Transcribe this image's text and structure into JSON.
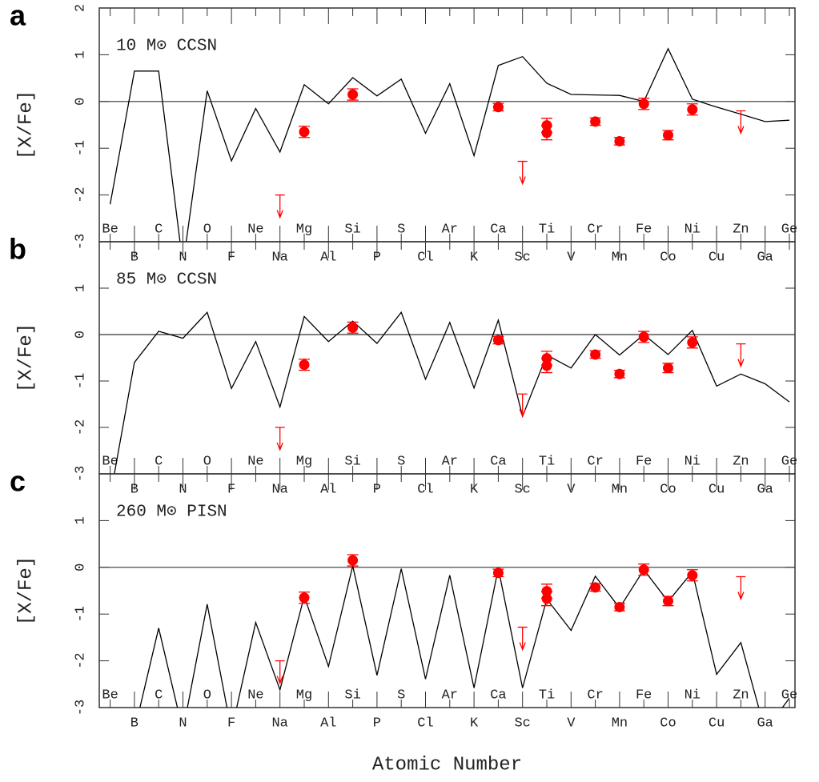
{
  "chart_data": [
    {
      "type": "line",
      "label": "a",
      "title": "10 M⊙ CCSN",
      "ylabel": "[X/Fe]",
      "categories": [
        "Be",
        "B",
        "C",
        "N",
        "O",
        "F",
        "Ne",
        "Na",
        "Mg",
        "Al",
        "Si",
        "P",
        "S",
        "Cl",
        "Ar",
        "K",
        "Ca",
        "Sc",
        "Ti",
        "V",
        "Cr",
        "Mn",
        "Fe",
        "Co",
        "Ni",
        "Cu",
        "Zn",
        "Ga",
        "Ge"
      ],
      "ylim": [
        -3,
        2
      ],
      "yticks": [
        2,
        1,
        0,
        -1,
        -2,
        -3
      ],
      "model": {
        "color": "#000000",
        "values": [
          -2.2,
          0.65,
          0.65,
          -3.5,
          0.23,
          -1.27,
          -0.15,
          -1.08,
          0.36,
          -0.05,
          0.51,
          0.12,
          0.48,
          -0.68,
          0.38,
          -1.16,
          0.77,
          0.96,
          0.39,
          0.15,
          0.14,
          0.13,
          0.0,
          1.13,
          0.05,
          -0.12,
          -0.27,
          -0.43,
          -0.4
        ]
      },
      "observations": {
        "color": "#ff0000",
        "x": [
          "Mg",
          "Si",
          "Ca",
          "Ti",
          "Ti",
          "Cr",
          "Mn",
          "Fe",
          "Co",
          "Ni"
        ],
        "values": [
          -0.65,
          0.15,
          -0.12,
          -0.51,
          -0.67,
          -0.43,
          -0.85,
          -0.05,
          -0.72,
          -0.17
        ],
        "errors": [
          0.12,
          0.12,
          0.08,
          0.15,
          0.15,
          0.08,
          0.08,
          0.12,
          0.1,
          0.12
        ]
      },
      "upper_limits": {
        "color": "#ff0000",
        "x": [
          "Na",
          "Sc",
          "Zn"
        ],
        "values": [
          -2.0,
          -1.28,
          -0.2
        ]
      }
    },
    {
      "type": "line",
      "label": "b",
      "title": "85 M⊙ CCSN",
      "ylabel": "[X/Fe]",
      "categories": [
        "Be",
        "B",
        "C",
        "N",
        "O",
        "F",
        "Ne",
        "Na",
        "Mg",
        "Al",
        "Si",
        "P",
        "S",
        "Cl",
        "Ar",
        "K",
        "Ca",
        "Sc",
        "Ti",
        "V",
        "Cr",
        "Mn",
        "Fe",
        "Co",
        "Ni",
        "Cu",
        "Zn",
        "Ga",
        "Ge"
      ],
      "ylim": [
        -3,
        2
      ],
      "yticks": [
        1,
        0,
        -1,
        -2,
        -3
      ],
      "model": {
        "color": "#000000",
        "values": [
          -3.5,
          -0.6,
          0.07,
          -0.08,
          0.48,
          -1.16,
          -0.15,
          -1.56,
          0.39,
          -0.15,
          0.29,
          -0.19,
          0.48,
          -0.96,
          0.26,
          -1.15,
          0.31,
          -1.76,
          -0.44,
          -0.72,
          0.0,
          -0.44,
          0.0,
          -0.43,
          0.09,
          -1.11,
          -0.85,
          -1.06,
          -1.45
        ]
      },
      "observations": {
        "color": "#ff0000",
        "x": [
          "Mg",
          "Si",
          "Ca",
          "Ti",
          "Ti",
          "Cr",
          "Mn",
          "Fe",
          "Co",
          "Ni"
        ],
        "values": [
          -0.65,
          0.15,
          -0.12,
          -0.51,
          -0.67,
          -0.43,
          -0.85,
          -0.05,
          -0.72,
          -0.17
        ],
        "errors": [
          0.12,
          0.12,
          0.08,
          0.15,
          0.15,
          0.08,
          0.08,
          0.12,
          0.1,
          0.12
        ]
      },
      "upper_limits": {
        "color": "#ff0000",
        "x": [
          "Na",
          "Sc",
          "Zn"
        ],
        "values": [
          -2.0,
          -1.28,
          -0.2
        ]
      }
    },
    {
      "type": "line",
      "label": "c",
      "title": "260 M⊙ PISN",
      "ylabel": "[X/Fe]",
      "xlabel": "Atomic Number",
      "categories": [
        "Be",
        "B",
        "C",
        "N",
        "O",
        "F",
        "Ne",
        "Na",
        "Mg",
        "Al",
        "Si",
        "P",
        "S",
        "Cl",
        "Ar",
        "K",
        "Ca",
        "Sc",
        "Ti",
        "V",
        "Cr",
        "Mn",
        "Fe",
        "Co",
        "Ni",
        "Cu",
        "Zn",
        "Ga",
        "Ge"
      ],
      "ylim": [
        -3,
        2
      ],
      "yticks": [
        1,
        0,
        -1,
        -2,
        -3
      ],
      "model": {
        "color": "#000000",
        "values": [
          -3.5,
          -3.5,
          -1.3,
          -3.5,
          -0.79,
          -3.5,
          -1.18,
          -2.62,
          -0.62,
          -2.12,
          0.03,
          -2.31,
          -0.03,
          -2.39,
          -0.17,
          -2.58,
          -0.02,
          -2.58,
          -0.68,
          -1.35,
          -0.19,
          -0.87,
          -0.05,
          -0.73,
          -0.1,
          -2.29,
          -1.61,
          -3.5,
          -2.8
        ]
      },
      "observations": {
        "color": "#ff0000",
        "x": [
          "Mg",
          "Si",
          "Ca",
          "Ti",
          "Ti",
          "Cr",
          "Mn",
          "Fe",
          "Co",
          "Ni"
        ],
        "values": [
          -0.65,
          0.15,
          -0.12,
          -0.51,
          -0.67,
          -0.43,
          -0.85,
          -0.05,
          -0.72,
          -0.17
        ],
        "errors": [
          0.12,
          0.12,
          0.08,
          0.15,
          0.15,
          0.08,
          0.08,
          0.12,
          0.1,
          0.12
        ]
      },
      "upper_limits": {
        "color": "#ff0000",
        "x": [
          "Na",
          "Sc",
          "Zn"
        ],
        "values": [
          -2.0,
          -1.28,
          -0.2
        ]
      }
    }
  ]
}
